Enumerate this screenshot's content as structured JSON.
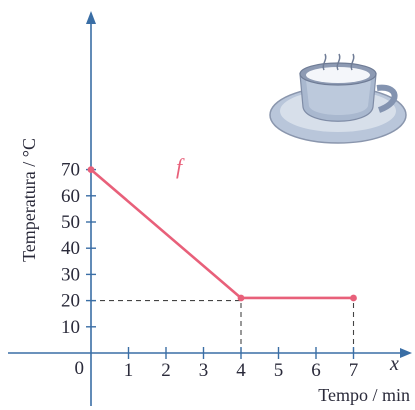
{
  "chart_data": {
    "type": "line",
    "title": "",
    "xlabel": "Tempo / min",
    "ylabel": "Temperatura / °C",
    "x_variable": "x",
    "function_label": "f",
    "xlim": [
      0,
      7.8
    ],
    "ylim": [
      0,
      80
    ],
    "x_ticks": [
      0,
      1,
      2,
      3,
      4,
      5,
      6,
      7
    ],
    "y_ticks": [
      10,
      20,
      30,
      40,
      50,
      60,
      70
    ],
    "origin_label": "0",
    "grid": false,
    "series": [
      {
        "x": [
          0,
          4,
          7
        ],
        "y": [
          70,
          21,
          21
        ]
      }
    ],
    "reference_lines": [
      {
        "from": [
          0,
          20
        ],
        "to": [
          4,
          20
        ]
      },
      {
        "from": [
          4,
          0
        ],
        "to": [
          4,
          21
        ]
      },
      {
        "from": [
          7,
          0
        ],
        "to": [
          7,
          21
        ]
      }
    ],
    "colors": {
      "axis": "#3a6ea5",
      "line": "#e8607a",
      "dash": "#444444"
    },
    "illustration": "coffee-cup-icon"
  }
}
